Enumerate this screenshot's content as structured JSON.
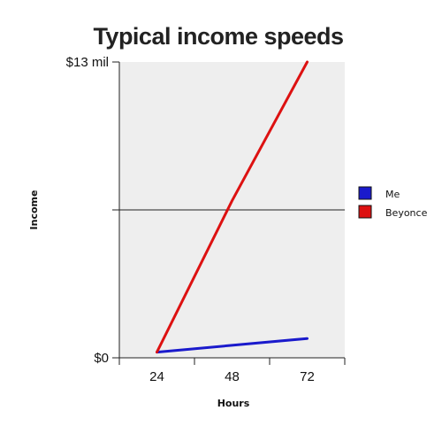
{
  "chart_data": {
    "type": "line",
    "title": "Typical income speeds",
    "xlabel": "Hours",
    "ylabel": "Income",
    "x": [
      24,
      48,
      72
    ],
    "xlim": [
      12,
      84
    ],
    "ylim": [
      0,
      13
    ],
    "y_unit": "million $",
    "y_tick_values": [
      0,
      6.5,
      13
    ],
    "y_tick_labels": [
      "$0",
      "",
      "$13 mil"
    ],
    "x_tick_labels": [
      "24",
      "48",
      "72"
    ],
    "grid": "horizontal midline",
    "legend_position": "right",
    "plot_background": "#eeeeee",
    "series": [
      {
        "name": "Me",
        "color": "#1a1acc",
        "values": [
          0.25,
          0.55,
          0.85
        ]
      },
      {
        "name": "Beyonce",
        "color": "#dd1111",
        "values": [
          0.25,
          6.9,
          13
        ]
      }
    ]
  }
}
